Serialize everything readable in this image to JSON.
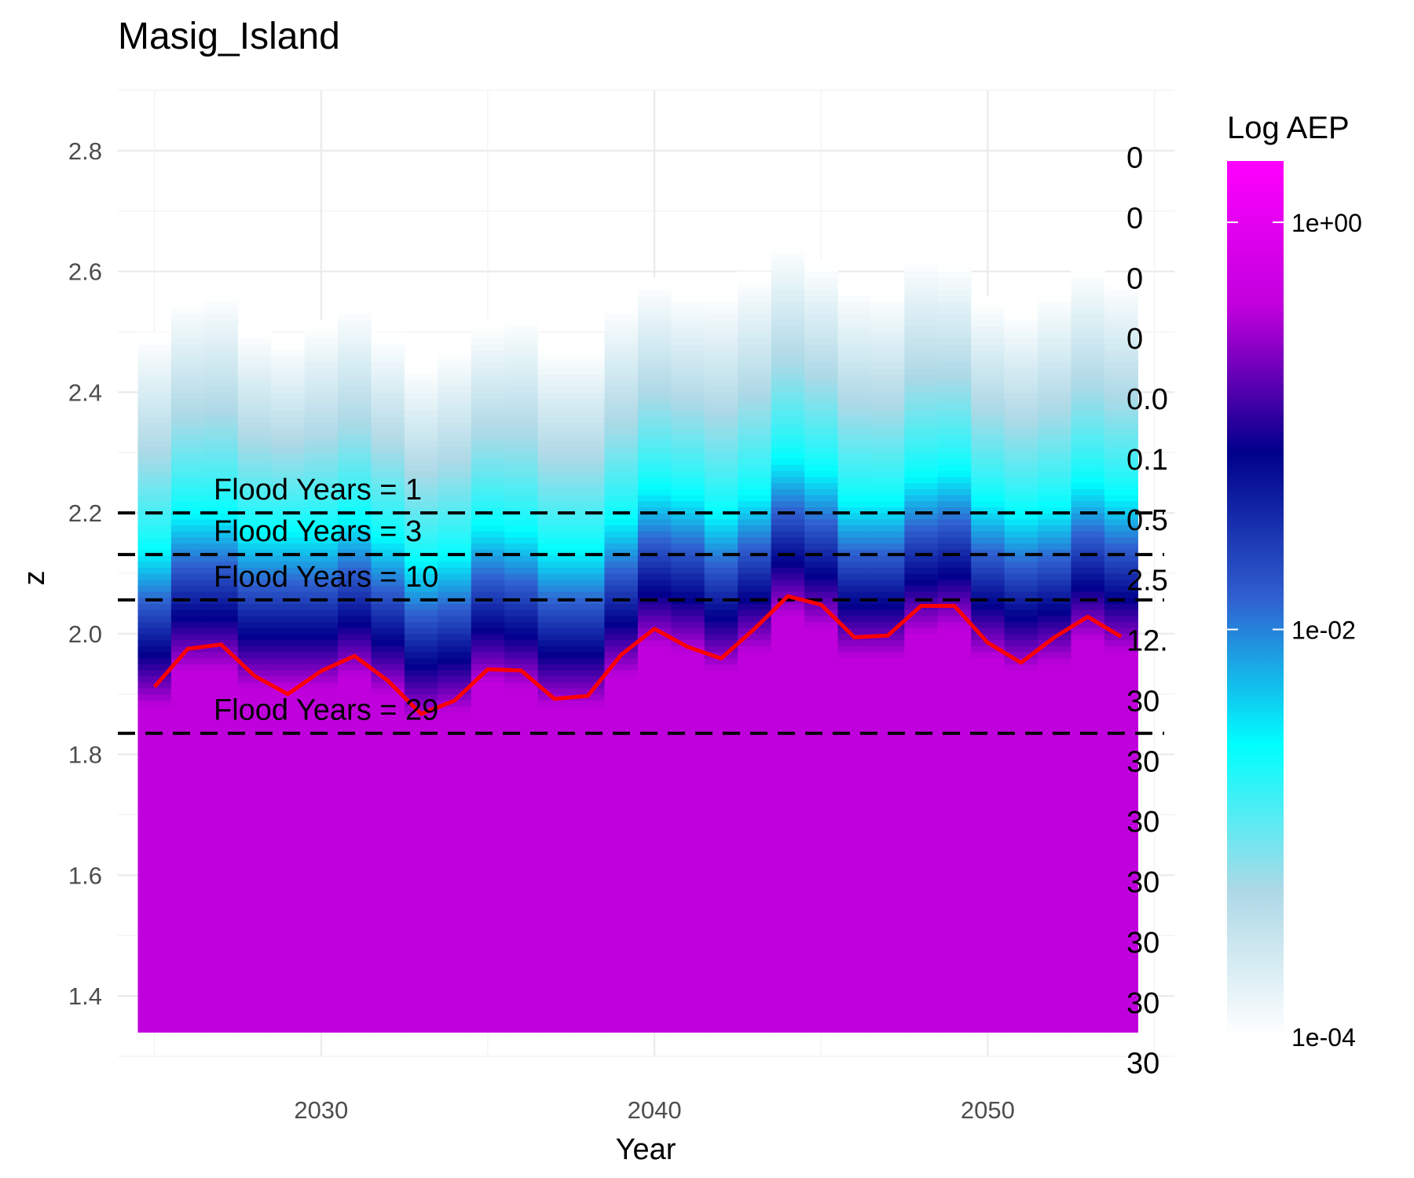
{
  "chart_data": {
    "type": "heatmap",
    "title": "Masig_Island",
    "xlabel": "Year",
    "ylabel": "z",
    "xlim": [
      2023.9,
      2055.6
    ],
    "ylim": [
      1.3,
      2.9
    ],
    "x_ticks": [
      2030,
      2040,
      2050
    ],
    "y_ticks": [
      1.4,
      1.6,
      1.8,
      2.0,
      2.2,
      2.4,
      2.6,
      2.8
    ],
    "grid": true,
    "heatmap": {
      "years": [
        2025,
        2026,
        2027,
        2028,
        2029,
        2030,
        2031,
        2032,
        2033,
        2034,
        2035,
        2036,
        2037,
        2038,
        2039,
        2040,
        2041,
        2042,
        2043,
        2044,
        2045,
        2046,
        2047,
        2048,
        2049,
        2050,
        2051,
        2052,
        2053,
        2054
      ],
      "z_min": 1.34,
      "z_top": [
        2.49,
        2.55,
        2.56,
        2.5,
        2.48,
        2.51,
        2.54,
        2.49,
        2.44,
        2.47,
        2.51,
        2.52,
        2.47,
        2.47,
        2.54,
        2.58,
        2.56,
        2.56,
        2.59,
        2.64,
        2.61,
        2.57,
        2.56,
        2.62,
        2.61,
        2.55,
        2.53,
        2.56,
        2.6,
        2.58
      ],
      "cyan_level": [
        2.14,
        2.2,
        2.2,
        2.17,
        2.17,
        2.17,
        2.19,
        2.16,
        2.12,
        2.13,
        2.18,
        2.17,
        2.14,
        2.14,
        2.19,
        2.24,
        2.23,
        2.2,
        2.23,
        2.29,
        2.27,
        2.22,
        2.22,
        2.26,
        2.27,
        2.22,
        2.2,
        2.21,
        2.25,
        2.23
      ],
      "colorbar": {
        "title": "Log AEP",
        "scale": "log",
        "range": [
          0.0001,
          2
        ],
        "labels": [
          "1e+00",
          "1e-02",
          "1e-04"
        ],
        "label_values": [
          1,
          0.01,
          0.0001
        ],
        "colors": [
          "#ffffff",
          "#add8e6",
          "#00ffff",
          "#3060d0",
          "#00008b",
          "#c000dc",
          "#ff00ff"
        ]
      }
    },
    "series": [
      {
        "color": "#ff0000",
        "x": [
          2025,
          2026,
          2027,
          2028,
          2029,
          2030,
          2031,
          2032,
          2033,
          2034,
          2035,
          2036,
          2037,
          2038,
          2039,
          2040,
          2041,
          2042,
          2043,
          2044,
          2045,
          2046,
          2047,
          2048,
          2049,
          2050,
          2051,
          2052,
          2053,
          2054
        ],
        "y": [
          1.912,
          1.975,
          1.982,
          1.93,
          1.9,
          1.938,
          1.963,
          1.922,
          1.867,
          1.889,
          1.941,
          1.939,
          1.892,
          1.897,
          1.965,
          2.008,
          1.978,
          1.959,
          2.008,
          2.062,
          2.048,
          1.994,
          1.997,
          2.046,
          2.046,
          1.985,
          1.952,
          1.994,
          2.028,
          1.995
        ]
      }
    ],
    "flood_lines": [
      {
        "z": 2.2,
        "label": "Flood Years = 1"
      },
      {
        "z": 2.131,
        "label": "Flood Years = 3"
      },
      {
        "z": 2.056,
        "label": "Flood Years = 10"
      },
      {
        "z": 1.835,
        "label": "Flood Years = 29"
      }
    ],
    "right_labels": [
      {
        "z": 2.79,
        "text": "0"
      },
      {
        "z": 2.69,
        "text": "0"
      },
      {
        "z": 2.59,
        "text": "0"
      },
      {
        "z": 2.49,
        "text": "0"
      },
      {
        "z": 2.39,
        "text": "0.0"
      },
      {
        "z": 2.29,
        "text": "0.1"
      },
      {
        "z": 2.19,
        "text": "0.5"
      },
      {
        "z": 2.09,
        "text": "2.5"
      },
      {
        "z": 1.99,
        "text": "12."
      },
      {
        "z": 1.89,
        "text": "30"
      },
      {
        "z": 1.79,
        "text": "30"
      },
      {
        "z": 1.69,
        "text": "30"
      },
      {
        "z": 1.59,
        "text": "30"
      },
      {
        "z": 1.49,
        "text": "30"
      },
      {
        "z": 1.39,
        "text": "30"
      },
      {
        "z": 1.29,
        "text": "30"
      }
    ]
  }
}
